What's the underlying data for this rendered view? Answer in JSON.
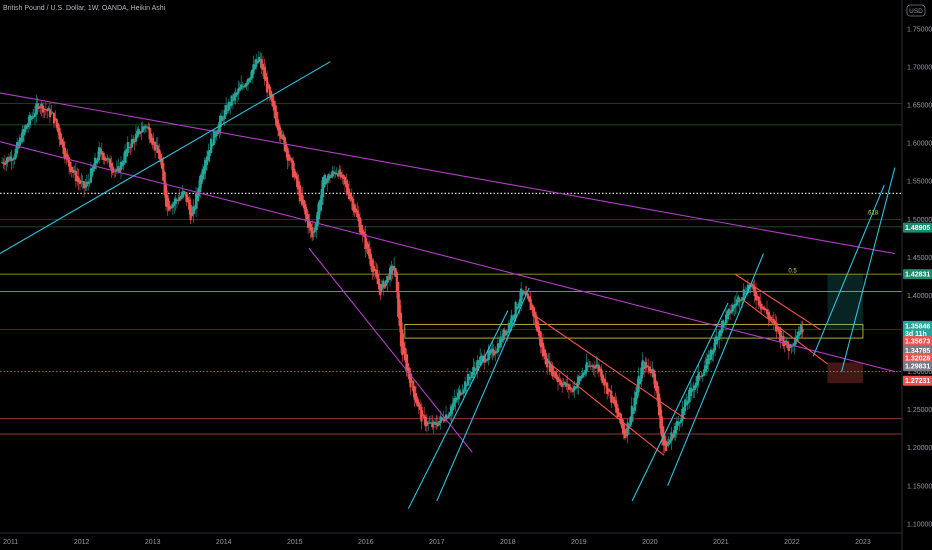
{
  "header": {
    "title": "British Pound / U.S. Dollar, 1W, OANDA, Heikin Ashi"
  },
  "currency_button": "USD",
  "colors": {
    "up": "#26a69a",
    "down": "#ef5350",
    "cyan": "#2ec1de",
    "magenta": "#b13ec6",
    "yellow": "#e3d246",
    "green": "#4caf50",
    "red": "#ef5350",
    "white": "#d1d4dc"
  },
  "chart_data": {
    "type": "candlestick",
    "title": "British Pound / U.S. Dollar, 1W, OANDA, Heikin Ashi",
    "xlim": [
      2010.85,
      2023.55
    ],
    "ylim": [
      1.088,
      1.788
    ],
    "x_ticks": [
      "2011",
      "2012",
      "2013",
      "2014",
      "2015",
      "2016",
      "2017",
      "2018",
      "2019",
      "2020",
      "2021",
      "2022",
      "2023"
    ],
    "y_ticks": [
      "1.75000",
      "1.70000",
      "1.65000",
      "1.60000",
      "1.55000",
      "1.50000",
      "1.45000",
      "1.40000",
      "1.35000",
      "1.30000",
      "1.25000",
      "1.20000",
      "1.15000",
      "1.10000"
    ],
    "price_path": [
      [
        2010.88,
        1.575
      ],
      [
        2011.05,
        1.585
      ],
      [
        2011.2,
        1.62
      ],
      [
        2011.4,
        1.652
      ],
      [
        2011.6,
        1.635
      ],
      [
        2011.8,
        1.575
      ],
      [
        2011.95,
        1.55
      ],
      [
        2012.05,
        1.54
      ],
      [
        2012.25,
        1.59
      ],
      [
        2012.5,
        1.56
      ],
      [
        2012.65,
        1.595
      ],
      [
        2012.9,
        1.625
      ],
      [
        2013.1,
        1.58
      ],
      [
        2013.2,
        1.515
      ],
      [
        2013.45,
        1.535
      ],
      [
        2013.55,
        1.5
      ],
      [
        2013.7,
        1.57
      ],
      [
        2013.9,
        1.62
      ],
      [
        2014.1,
        1.655
      ],
      [
        2014.3,
        1.68
      ],
      [
        2014.5,
        1.712
      ],
      [
        2014.7,
        1.64
      ],
      [
        2014.95,
        1.57
      ],
      [
        2015.1,
        1.52
      ],
      [
        2015.25,
        1.475
      ],
      [
        2015.4,
        1.55
      ],
      [
        2015.6,
        1.565
      ],
      [
        2015.8,
        1.525
      ],
      [
        2016.0,
        1.465
      ],
      [
        2016.2,
        1.405
      ],
      [
        2016.4,
        1.44
      ],
      [
        2016.5,
        1.33
      ],
      [
        2016.6,
        1.295
      ],
      [
        2016.8,
        1.235
      ],
      [
        2016.95,
        1.228
      ],
      [
        2017.15,
        1.245
      ],
      [
        2017.4,
        1.285
      ],
      [
        2017.6,
        1.315
      ],
      [
        2017.8,
        1.325
      ],
      [
        2018.0,
        1.36
      ],
      [
        2018.2,
        1.405
      ],
      [
        2018.35,
        1.38
      ],
      [
        2018.5,
        1.32
      ],
      [
        2018.7,
        1.29
      ],
      [
        2018.9,
        1.275
      ],
      [
        2019.1,
        1.305
      ],
      [
        2019.25,
        1.31
      ],
      [
        2019.5,
        1.255
      ],
      [
        2019.65,
        1.215
      ],
      [
        2019.9,
        1.31
      ],
      [
        2020.05,
        1.3
      ],
      [
        2020.2,
        1.195
      ],
      [
        2020.4,
        1.235
      ],
      [
        2020.6,
        1.28
      ],
      [
        2020.8,
        1.31
      ],
      [
        2021.0,
        1.36
      ],
      [
        2021.2,
        1.39
      ],
      [
        2021.4,
        1.415
      ],
      [
        2021.55,
        1.39
      ],
      [
        2021.75,
        1.36
      ],
      [
        2021.95,
        1.33
      ],
      [
        2022.1,
        1.355
      ],
      [
        2022.15,
        1.358
      ]
    ],
    "horizontal_levels": [
      {
        "y": 1.652,
        "color": "#4caf50",
        "style": "solid"
      },
      {
        "y": 1.624,
        "color": "#4caf50",
        "style": "solid"
      },
      {
        "y": 1.534,
        "color": "#ffffff",
        "style": "dotted"
      },
      {
        "y": 1.5,
        "color": "#4caf50",
        "style": "solid"
      },
      {
        "y": 1.49,
        "color": "#4caf50",
        "style": "solid"
      },
      {
        "y": 1.428,
        "color": "#e3d246",
        "style": "solid"
      },
      {
        "y": 1.405,
        "color": "#e3d246",
        "style": "solid"
      },
      {
        "y": 1.355,
        "color": "#4caf50",
        "style": "solid"
      },
      {
        "y": 1.3,
        "color": "#ef5350",
        "style": "dotted"
      },
      {
        "y": 1.238,
        "color": "#ef5350",
        "style": "solid"
      },
      {
        "y": 1.218,
        "color": "#ef5350",
        "style": "solid"
      }
    ],
    "fib_labels": [
      {
        "text": ".618",
        "x": 2023.05,
        "y": 1.506
      },
      {
        "text": "0.5",
        "x": 2021.95,
        "y": 1.43
      }
    ],
    "trend_lines": [
      {
        "color": "#b13ec6",
        "p1": [
          2010.85,
          1.666
        ],
        "p2": [
          2023.45,
          1.455
        ]
      },
      {
        "color": "#b13ec6",
        "p1": [
          2010.85,
          1.602
        ],
        "p2": [
          2023.45,
          1.3
        ]
      },
      {
        "color": "#b13ec6",
        "p1": [
          2015.2,
          1.462
        ],
        "p2": [
          2017.5,
          1.194
        ]
      },
      {
        "color": "#2ec1de",
        "p1": [
          2010.85,
          1.455
        ],
        "p2": [
          2015.5,
          1.707
        ]
      },
      {
        "color": "#2ec1de",
        "p1": [
          2016.6,
          1.12
        ],
        "p2": [
          2018.0,
          1.38
        ]
      },
      {
        "color": "#2ec1de",
        "p1": [
          2017.0,
          1.13
        ],
        "p2": [
          2018.3,
          1.41
        ]
      },
      {
        "color": "#2ec1de",
        "p1": [
          2019.75,
          1.13
        ],
        "p2": [
          2021.1,
          1.39
        ]
      },
      {
        "color": "#2ec1de",
        "p1": [
          2020.25,
          1.15
        ],
        "p2": [
          2021.6,
          1.455
        ]
      },
      {
        "color": "#2ec1de",
        "p1": [
          2022.3,
          1.32
        ],
        "p2": [
          2023.3,
          1.545
        ]
      },
      {
        "color": "#2ec1de",
        "p1": [
          2022.7,
          1.3
        ],
        "p2": [
          2023.45,
          1.568
        ]
      },
      {
        "color": "#ef5350",
        "p1": [
          2018.4,
          1.372
        ],
        "p2": [
          2020.5,
          1.238
        ]
      },
      {
        "color": "#ef5350",
        "p1": [
          2018.6,
          1.31
        ],
        "p2": [
          2020.2,
          1.19
        ]
      },
      {
        "color": "#ef5350",
        "p1": [
          2021.2,
          1.428
        ],
        "p2": [
          2022.4,
          1.355
        ]
      },
      {
        "color": "#ef5350",
        "p1": [
          2021.3,
          1.395
        ],
        "p2": [
          2022.5,
          1.31
        ]
      }
    ],
    "boxes": [
      {
        "x1": 2016.55,
        "x2": 2023.0,
        "y1": 1.362,
        "y2": 1.344,
        "fill": "none",
        "stroke": "#e3d246"
      },
      {
        "x1": 2022.5,
        "x2": 2023.0,
        "y1": 1.428,
        "y2": 1.355,
        "fill": "rgba(38,166,154,0.22)",
        "stroke": "none"
      },
      {
        "x1": 2022.5,
        "x2": 2023.0,
        "y1": 1.312,
        "y2": 1.285,
        "fill": "rgba(239,83,80,0.28)",
        "stroke": "none"
      }
    ],
    "price_badges": [
      {
        "text": "1.48905",
        "y": 1.489,
        "bg": "#1c8c6f"
      },
      {
        "text": "1.42831",
        "y": 1.428,
        "bg": "#1c8c6f"
      },
      {
        "text": "1.35846",
        "y": 1.36,
        "bg": "#26a69a"
      },
      {
        "text": "3d 11h",
        "y": 1.35,
        "bg": "#26a69a"
      },
      {
        "text": "1.35673",
        "y": 1.34,
        "bg": "#ef5350"
      },
      {
        "text": "1.34785",
        "y": 1.328,
        "bg": "#787b86"
      },
      {
        "text": "1.32028",
        "y": 1.318,
        "bg": "#ef5350"
      },
      {
        "text": "1.29831",
        "y": 1.307,
        "bg": "#787b86"
      },
      {
        "text": "1.27231",
        "y": 1.288,
        "bg": "#ef5350"
      }
    ]
  }
}
